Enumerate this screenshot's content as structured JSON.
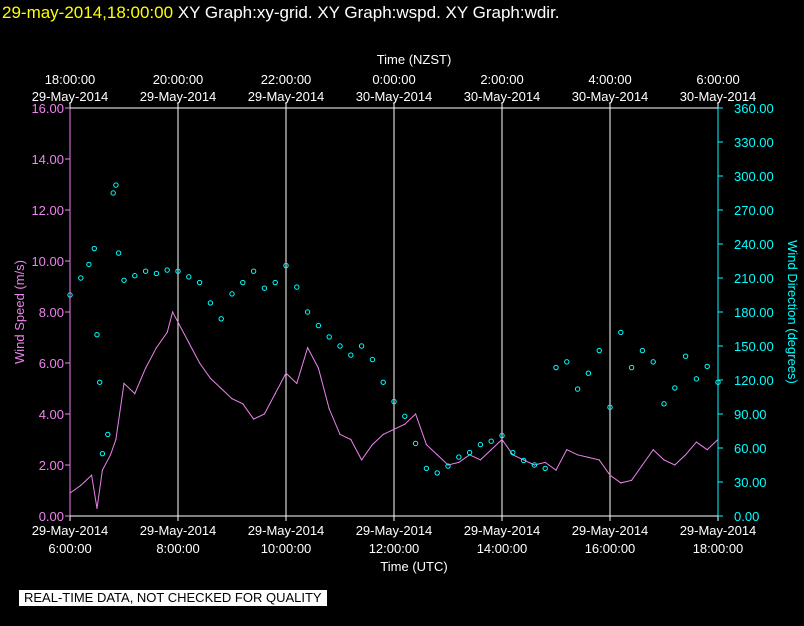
{
  "header": {
    "timestamp": "29-may-2014,18:00:00",
    "graphs_label": "XY Graph:xy-grid.  XY Graph:wspd.  XY Graph:wdir."
  },
  "notice": "REAL-TIME DATA, NOT CHECKED FOR QUALITY",
  "colors": {
    "background": "#000000",
    "grid": "#ffffff",
    "wind_speed": "#ee82ee",
    "wind_direction": "#00ffff",
    "timestamp": "#ffff00",
    "text": "#ffffff"
  },
  "chart_data": {
    "type": "line",
    "top_axis": {
      "label": "Time (NZST)",
      "ticks": [
        {
          "time": "18:00:00",
          "date": "29-May-2014"
        },
        {
          "time": "20:00:00",
          "date": "29-May-2014"
        },
        {
          "time": "22:00:00",
          "date": "29-May-2014"
        },
        {
          "time": "0:00:00",
          "date": "30-May-2014"
        },
        {
          "time": "2:00:00",
          "date": "30-May-2014"
        },
        {
          "time": "4:00:00",
          "date": "30-May-2014"
        },
        {
          "time": "6:00:00",
          "date": "30-May-2014"
        }
      ]
    },
    "bottom_axis": {
      "label": "Time (UTC)",
      "range_hours": [
        6,
        18
      ],
      "ticks": [
        {
          "date": "29-May-2014",
          "time": "6:00:00"
        },
        {
          "date": "29-May-2014",
          "time": "8:00:00"
        },
        {
          "date": "29-May-2014",
          "time": "10:00:00"
        },
        {
          "date": "29-May-2014",
          "time": "12:00:00"
        },
        {
          "date": "29-May-2014",
          "time": "14:00:00"
        },
        {
          "date": "29-May-2014",
          "time": "16:00:00"
        },
        {
          "date": "29-May-2014",
          "time": "18:00:00"
        }
      ]
    },
    "left_axis": {
      "label": "Wind Speed (m/s)",
      "range": [
        0,
        16
      ],
      "ticks": [
        "0.00",
        "2.00",
        "4.00",
        "6.00",
        "8.00",
        "10.00",
        "12.00",
        "14.00",
        "16.00"
      ]
    },
    "right_axis": {
      "label": "Wind Direction (degrees)",
      "range": [
        0,
        360
      ],
      "ticks": [
        "0.00",
        "30.00",
        "60.00",
        "90.00",
        "120.00",
        "150.00",
        "180.00",
        "210.00",
        "240.00",
        "270.00",
        "300.00",
        "330.00",
        "360.00"
      ]
    },
    "grid": "vertical",
    "series": [
      {
        "name": "wspd",
        "style": "line",
        "axis": "left",
        "x_hours_utc": [
          6.0,
          6.2,
          6.4,
          6.5,
          6.6,
          6.75,
          6.85,
          7.0,
          7.2,
          7.4,
          7.6,
          7.8,
          7.9,
          8.0,
          8.2,
          8.4,
          8.6,
          8.8,
          9.0,
          9.2,
          9.4,
          9.6,
          9.8,
          10.0,
          10.2,
          10.4,
          10.6,
          10.8,
          11.0,
          11.2,
          11.4,
          11.6,
          11.8,
          12.0,
          12.2,
          12.4,
          12.6,
          12.8,
          13.0,
          13.2,
          13.4,
          13.6,
          13.8,
          14.0,
          14.2,
          14.4,
          14.6,
          14.8,
          15.0,
          15.2,
          15.4,
          15.6,
          15.8,
          16.0,
          16.2,
          16.4,
          16.6,
          16.8,
          17.0,
          17.2,
          17.4,
          17.6,
          17.8,
          18.0
        ],
        "y": [
          0.9,
          1.2,
          1.6,
          0.3,
          1.8,
          2.4,
          3.0,
          5.2,
          4.8,
          5.8,
          6.6,
          7.2,
          8.0,
          7.6,
          6.8,
          6.0,
          5.4,
          5.0,
          4.6,
          4.4,
          3.8,
          4.0,
          4.8,
          5.6,
          5.2,
          6.6,
          5.8,
          4.2,
          3.2,
          3.0,
          2.2,
          2.8,
          3.2,
          3.4,
          3.6,
          4.0,
          2.8,
          2.4,
          2.0,
          2.1,
          2.4,
          2.2,
          2.6,
          3.0,
          2.4,
          2.2,
          2.0,
          2.1,
          1.8,
          2.6,
          2.4,
          2.3,
          2.2,
          1.6,
          1.3,
          1.4,
          2.0,
          2.6,
          2.2,
          2.0,
          2.4,
          2.9,
          2.6,
          3.0
        ]
      },
      {
        "name": "wdir",
        "style": "circles",
        "axis": "right",
        "x_hours_utc": [
          6.0,
          6.2,
          6.35,
          6.45,
          6.5,
          6.55,
          6.6,
          6.7,
          6.8,
          6.85,
          6.9,
          7.0,
          7.2,
          7.4,
          7.6,
          7.8,
          8.0,
          8.2,
          8.4,
          8.6,
          8.8,
          9.0,
          9.2,
          9.4,
          9.6,
          9.8,
          10.0,
          10.2,
          10.4,
          10.6,
          10.8,
          11.0,
          11.2,
          11.4,
          11.6,
          11.8,
          12.0,
          12.2,
          12.4,
          12.6,
          12.8,
          13.0,
          13.2,
          13.4,
          13.6,
          13.8,
          14.0,
          14.2,
          14.4,
          14.6,
          14.8,
          15.0,
          15.2,
          15.4,
          15.6,
          15.8,
          16.0,
          16.2,
          16.4,
          16.6,
          16.8,
          17.0,
          17.2,
          17.4,
          17.6,
          17.8,
          18.0
        ],
        "y": [
          195,
          210,
          222,
          236,
          160,
          118,
          55,
          72,
          285,
          292,
          232,
          208,
          212,
          216,
          214,
          217,
          216,
          211,
          206,
          188,
          174,
          196,
          206,
          216,
          201,
          206,
          221,
          202,
          180,
          168,
          158,
          150,
          142,
          150,
          138,
          118,
          101,
          88,
          64,
          42,
          38,
          44,
          52,
          56,
          63,
          66,
          71,
          56,
          49,
          45,
          42,
          131,
          136,
          112,
          126,
          146,
          96,
          162,
          131,
          146,
          136,
          99,
          113,
          141,
          121,
          132,
          118
        ]
      }
    ]
  }
}
